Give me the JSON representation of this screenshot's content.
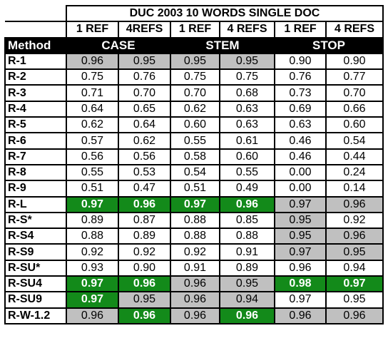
{
  "title": "DUC 2003 10 WORDS SINGLE DOC",
  "ref_headers": [
    "1 REF",
    "4REFS",
    "1 REF",
    "4 REFS",
    "1 REF",
    "4 REFS"
  ],
  "method_label": "Method",
  "groups": [
    "CASE",
    "STEM",
    "STOP"
  ],
  "colors": {
    "gray": "#c0c0c0",
    "green": "#138a1a",
    "header": "#000000"
  },
  "rows": [
    {
      "name": "R-1",
      "values": [
        "0.96",
        "0.95",
        "0.95",
        "0.95",
        "0.90",
        "0.90"
      ],
      "styles": [
        "g",
        "g",
        "g",
        "g",
        "",
        ""
      ]
    },
    {
      "name": "R-2",
      "values": [
        "0.75",
        "0.76",
        "0.75",
        "0.75",
        "0.76",
        "0.77"
      ],
      "styles": [
        "",
        "",
        "",
        "",
        "",
        ""
      ]
    },
    {
      "name": "R-3",
      "values": [
        "0.71",
        "0.70",
        "0.70",
        "0.68",
        "0.73",
        "0.70"
      ],
      "styles": [
        "",
        "",
        "",
        "",
        "",
        ""
      ]
    },
    {
      "name": "R-4",
      "values": [
        "0.64",
        "0.65",
        "0.62",
        "0.63",
        "0.69",
        "0.66"
      ],
      "styles": [
        "",
        "",
        "",
        "",
        "",
        ""
      ]
    },
    {
      "name": "R-5",
      "values": [
        "0.62",
        "0.64",
        "0.60",
        "0.63",
        "0.63",
        "0.60"
      ],
      "styles": [
        "",
        "",
        "",
        "",
        "",
        ""
      ]
    },
    {
      "name": "R-6",
      "values": [
        "0.57",
        "0.62",
        "0.55",
        "0.61",
        "0.46",
        "0.54"
      ],
      "styles": [
        "",
        "",
        "",
        "",
        "",
        ""
      ]
    },
    {
      "name": "R-7",
      "values": [
        "0.56",
        "0.56",
        "0.58",
        "0.60",
        "0.46",
        "0.44"
      ],
      "styles": [
        "",
        "",
        "",
        "",
        "",
        ""
      ]
    },
    {
      "name": "R-8",
      "values": [
        "0.55",
        "0.53",
        "0.54",
        "0.55",
        "0.00",
        "0.24"
      ],
      "styles": [
        "",
        "",
        "",
        "",
        "",
        ""
      ]
    },
    {
      "name": "R-9",
      "values": [
        "0.51",
        "0.47",
        "0.51",
        "0.49",
        "0.00",
        "0.14"
      ],
      "styles": [
        "",
        "",
        "",
        "",
        "",
        ""
      ]
    },
    {
      "name": "R-L",
      "values": [
        "0.97",
        "0.96",
        "0.97",
        "0.96",
        "0.97",
        "0.96"
      ],
      "styles": [
        "G",
        "G",
        "G",
        "G",
        "g",
        "g"
      ]
    },
    {
      "name": "R-S*",
      "values": [
        "0.89",
        "0.87",
        "0.88",
        "0.85",
        "0.95",
        "0.92"
      ],
      "styles": [
        "",
        "",
        "",
        "",
        "g",
        ""
      ]
    },
    {
      "name": "R-S4",
      "values": [
        "0.88",
        "0.89",
        "0.88",
        "0.88",
        "0.95",
        "0.96"
      ],
      "styles": [
        "",
        "",
        "",
        "",
        "g",
        "g"
      ]
    },
    {
      "name": "R-S9",
      "values": [
        "0.92",
        "0.92",
        "0.92",
        "0.91",
        "0.97",
        "0.95"
      ],
      "styles": [
        "",
        "",
        "",
        "",
        "g",
        "g"
      ]
    },
    {
      "name": "R-SU*",
      "values": [
        "0.93",
        "0.90",
        "0.91",
        "0.89",
        "0.96",
        "0.94"
      ],
      "styles": [
        "",
        "",
        "",
        "",
        "",
        ""
      ]
    },
    {
      "name": "R-SU4",
      "values": [
        "0.97",
        "0.96",
        "0.96",
        "0.95",
        "0.98",
        "0.97"
      ],
      "styles": [
        "G",
        "G",
        "g",
        "g",
        "G",
        "G"
      ]
    },
    {
      "name": "R-SU9",
      "values": [
        "0.97",
        "0.95",
        "0.96",
        "0.94",
        "0.97",
        "0.95"
      ],
      "styles": [
        "G",
        "g",
        "g",
        "g",
        "",
        ""
      ]
    },
    {
      "name": "R-W-1.2",
      "values": [
        "0.96",
        "0.96",
        "0.96",
        "0.96",
        "0.96",
        "0.96"
      ],
      "styles": [
        "g",
        "G",
        "g",
        "G",
        "g",
        "g"
      ]
    }
  ]
}
